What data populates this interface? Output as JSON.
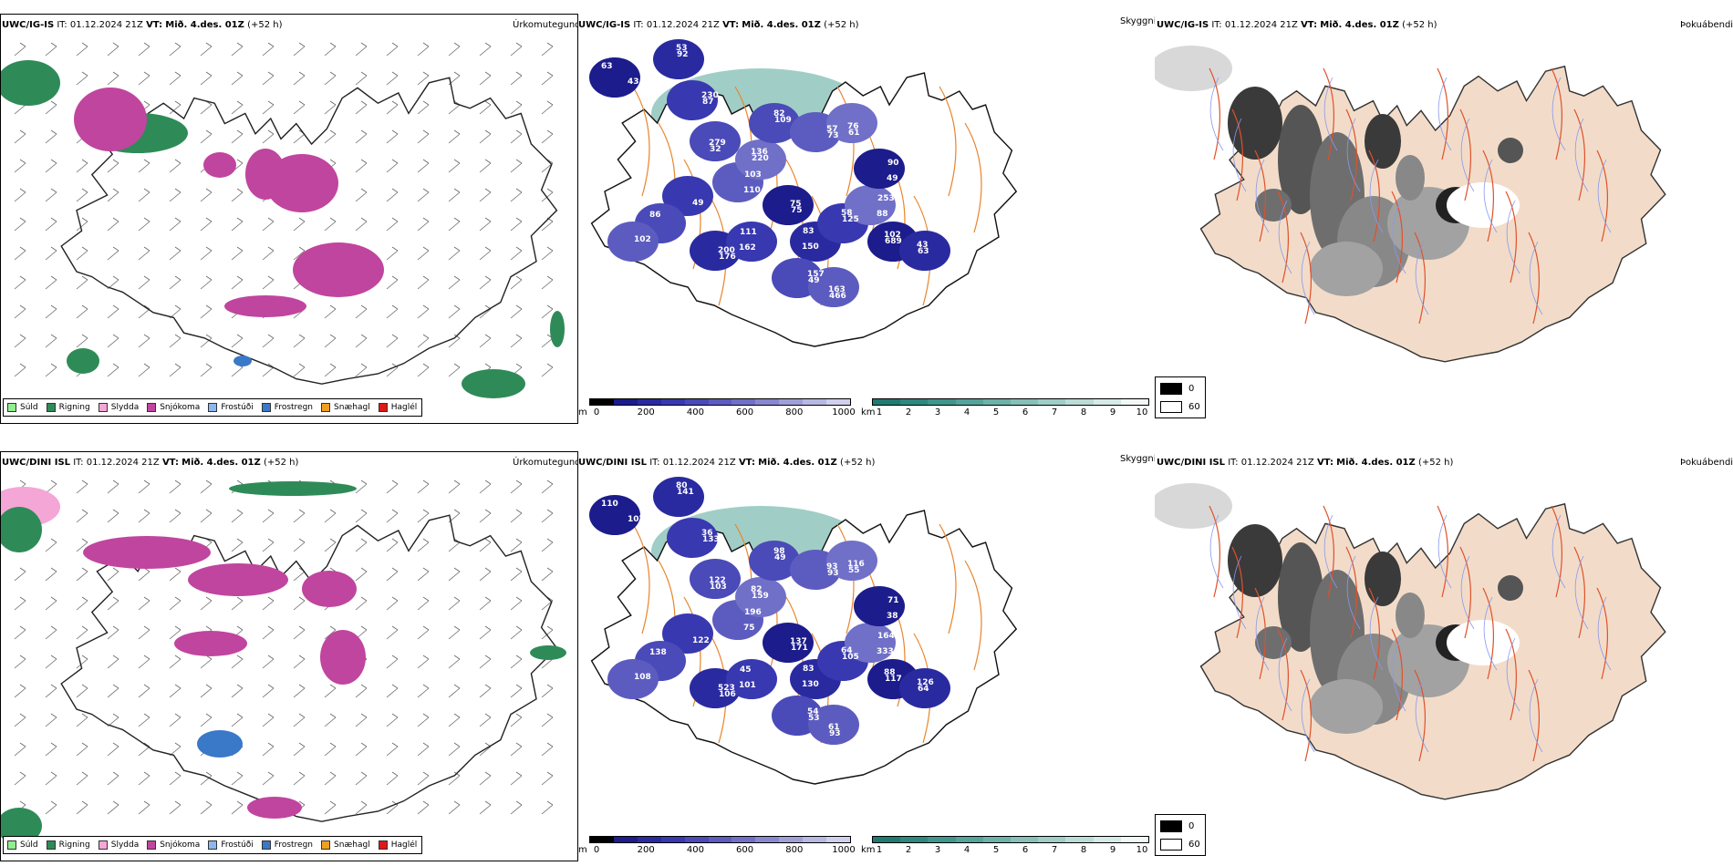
{
  "rows": [
    {
      "model_label": "UWC/IG-IS",
      "it_label": "IT:",
      "it_value": "01.12.2024 21Z",
      "vt_label": "VT:",
      "vt_value": "Mið. 4.des. 01Z",
      "lead": "(+52 h)",
      "panel_titles": {
        "precip": "Úrkomutegund",
        "visibility": "Skyggni",
        "fog": "Þokuábendi"
      }
    },
    {
      "model_label": "UWC/DINI ISL",
      "it_label": "IT:",
      "it_value": "01.12.2024 21Z",
      "vt_label": "VT:",
      "vt_value": "Mið. 4.des. 01Z",
      "lead": "(+52 h)",
      "panel_titles": {
        "precip": "Úrkomutegund",
        "visibility": "Skyggni",
        "fog": "Þokuábendi"
      }
    }
  ],
  "precip_legend": [
    {
      "label": "Súld",
      "color": "#90ee90"
    },
    {
      "label": "Rigning",
      "color": "#2e8b57"
    },
    {
      "label": "Slydda",
      "color": "#f4a6d7"
    },
    {
      "label": "Snjókoma",
      "color": "#c0459e"
    },
    {
      "label": "Frostúði",
      "color": "#8cb8f0"
    },
    {
      "label": "Frostregn",
      "color": "#3a78c8"
    },
    {
      "label": "Snæhagl",
      "color": "#f0a020"
    },
    {
      "label": "Haglél",
      "color": "#e01818"
    }
  ],
  "cloud_base_bar": {
    "unit": "m",
    "ticks": [
      "0",
      "200",
      "400",
      "600",
      "800",
      "1000"
    ],
    "colors": [
      "#000000",
      "#1c1c8c",
      "#2a2aa0",
      "#3838b0",
      "#4a4ab8",
      "#5c5cc0",
      "#7070c8",
      "#8888d0",
      "#a0a0d8",
      "#b8b8e4",
      "#d0d0ee"
    ]
  },
  "visibility_bar": {
    "unit": "km",
    "ticks": [
      "1",
      "2",
      "3",
      "4",
      "5",
      "6",
      "7",
      "8",
      "9",
      "10"
    ],
    "colors": [
      "#1f7a72",
      "#2d8880",
      "#3f968c",
      "#55a49a",
      "#6db2a8",
      "#86c0b6",
      "#a0cec6",
      "#bcdcd6",
      "#d6eae6",
      "#f2f8f6"
    ]
  },
  "fog_key": [
    {
      "label": "0",
      "color": "#000000"
    },
    {
      "label": "60",
      "color": "#ffffff"
    }
  ],
  "cloud_labels": [
    [
      "63",
      "92",
      "87",
      "32",
      "103",
      "220",
      "75",
      "83",
      "125",
      "49",
      "466",
      "253",
      "689",
      "176",
      "111",
      "109",
      "73",
      "61",
      "90",
      "63",
      "49",
      "86",
      "102",
      "43",
      "53",
      "230",
      "279",
      "110",
      "136",
      "75",
      "150",
      "58",
      "157",
      "163",
      "88",
      "102",
      "200",
      "162",
      "82",
      "57",
      "76",
      "49",
      "43"
    ],
    [
      "110",
      "141",
      "133",
      "103",
      "196",
      "159",
      "171",
      "83",
      "105",
      "53",
      "93",
      "164",
      "117",
      "106",
      "45",
      "49",
      "93",
      "55",
      "71",
      "64",
      "122",
      "138",
      "108",
      "107",
      "80",
      "36",
      "122",
      "75",
      "82",
      "137",
      "130",
      "64",
      "54",
      "61",
      "333",
      "88",
      "523",
      "101",
      "98",
      "93",
      "116",
      "38",
      "126"
    ]
  ],
  "icons": {
    "precip_map": "precip-map-icon",
    "cloud_map": "cloud-base-map-icon",
    "fog_map": "fog-map-icon"
  }
}
